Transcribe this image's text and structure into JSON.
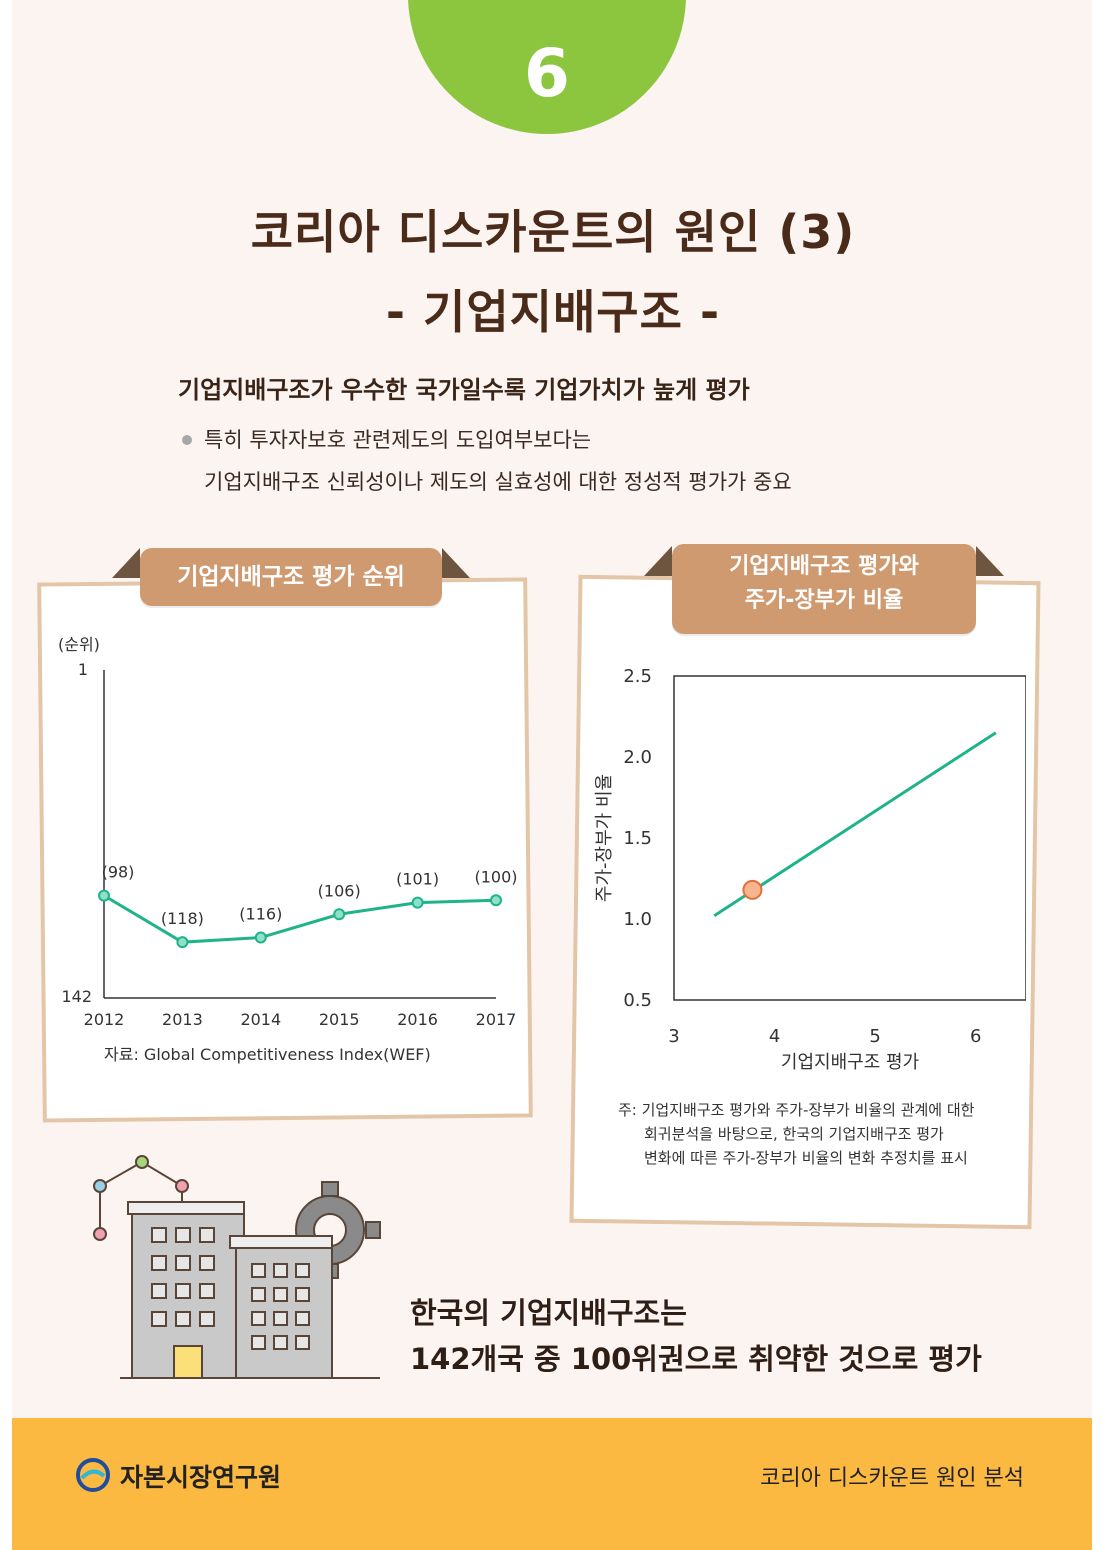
{
  "badge": "6",
  "title": {
    "line1": "코리아 디스카운트의 원인 (3)",
    "line2": "- 기업지배구조 -"
  },
  "lead": "기업지배구조가 우수한 국가일수록 기업가치가 높게 평가",
  "bullet": {
    "line1": "특히 투자자보호 관련제도의 도입여부보다는",
    "line2": "기업지배구조 신뢰성이나 제도의 실효성에 대한 정성적 평가가 중요"
  },
  "left_card": {
    "tab": "기업지배구조 평가 순위",
    "unit": "(순위)",
    "source": "자료: Global Competitiveness Index(WEF)"
  },
  "right_card": {
    "tab_line1": "기업지배구조 평가와",
    "tab_line2": "주가-장부가 비율",
    "note_line1": "주: 기업지배구조 평가와 주가-장부가 비율의 관계에 대한",
    "note_line2": "회귀분석을 바탕으로, 한국의 기업지배구조 평가",
    "note_line3": "변화에 따른 주가-장부가 비율의 변화 추정치를 표시"
  },
  "chart_data": [
    {
      "type": "line",
      "x": [
        "2012",
        "2013",
        "2014",
        "2015",
        "2016",
        "2017"
      ],
      "values": [
        98,
        118,
        116,
        106,
        101,
        100
      ],
      "data_labels": [
        "(98)",
        "(118)",
        "(116)",
        "(106)",
        "(101)",
        "(100)"
      ],
      "ylim": [
        1,
        142
      ],
      "y_ticks": [
        "1",
        "142"
      ],
      "y_inverted": true,
      "ylabel": "(순위)",
      "line_color": "#1fb38a",
      "marker_color": "#8fe0c8"
    },
    {
      "type": "line",
      "xlabel": "기업지배구조 평가",
      "ylabel": "주가-장부가 비율",
      "xlim": [
        3,
        6.5
      ],
      "ylim": [
        0.5,
        2.5
      ],
      "x_ticks": [
        "3",
        "4",
        "5",
        "6"
      ],
      "y_ticks": [
        "0.5",
        "1.0",
        "1.5",
        "2.0",
        "2.5"
      ],
      "line": {
        "x": [
          3.4,
          6.2
        ],
        "y": [
          1.02,
          2.15
        ]
      },
      "highlight_point": {
        "x": 3.78,
        "y": 1.18
      },
      "line_color": "#1fb38a",
      "highlight_color": "#f6b58e"
    }
  ],
  "summary": {
    "line1": "한국의 기업지배구조는",
    "line2": "142개국 중 100위권으로 취약한 것으로 평가"
  },
  "footer": {
    "org": "자본시장연구원",
    "right": "코리아 디스카운트 원인 분석",
    "bg_color": "#fbb942"
  }
}
